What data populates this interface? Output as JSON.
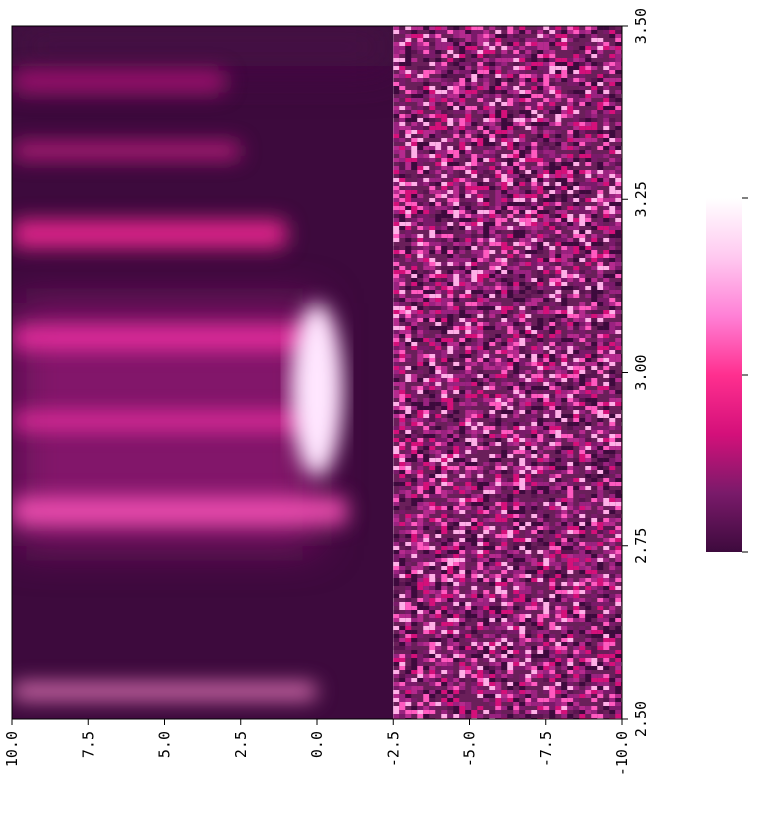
{
  "chart_data": {
    "type": "heatmap",
    "orientation": "rotated-90-clockwise",
    "title": "",
    "xlabel": "",
    "ylabel": "",
    "x_axis": {
      "ticks": [
        10.0,
        7.5,
        5.0,
        2.5,
        0.0,
        -2.5,
        -5.0,
        -7.5,
        -10.0
      ],
      "tick_labels": [
        "10.0",
        "7.5",
        "5.0",
        "2.5",
        "0.0",
        "-2.5",
        "-5.0",
        "-7.5",
        "-10.0"
      ],
      "range": [
        10.0,
        -10.0
      ],
      "position": "bottom"
    },
    "y_axis": {
      "ticks": [
        2.5,
        2.75,
        3.0,
        3.25,
        3.5
      ],
      "tick_labels": [
        "2.50",
        "2.75",
        "3.00",
        "3.25",
        "3.50"
      ],
      "range": [
        2.5,
        3.5
      ],
      "position": "right"
    },
    "split_at_x": -2.5,
    "regions": {
      "smooth": {
        "x_range": [
          10.0,
          -2.5
        ],
        "base_color": "#3d0a3d"
      },
      "noisy": {
        "x_range": [
          -2.5,
          -10.0
        ],
        "base_color": "#6a1f5a"
      }
    },
    "features": [
      {
        "kind": "bright-core",
        "x": 0.0,
        "y_range": [
          2.85,
          3.1
        ],
        "color": "#ffe6ff"
      },
      {
        "kind": "band",
        "y": 2.93,
        "x_range": [
          10.0,
          0.0
        ],
        "color": "#ff33aa"
      },
      {
        "kind": "band",
        "y": 3.05,
        "x_range": [
          10.0,
          0.0
        ],
        "color": "#ff33aa"
      },
      {
        "kind": "band",
        "y": 3.2,
        "x_range": [
          10.0,
          1.0
        ],
        "color": "#ff2b9a"
      },
      {
        "kind": "band",
        "y": 3.32,
        "x_range": [
          10.0,
          2.5
        ],
        "color": "#d51f8a"
      },
      {
        "kind": "band",
        "y": 3.42,
        "x_range": [
          10.0,
          3.0
        ],
        "color": "#b01a78"
      },
      {
        "kind": "band",
        "y": 2.8,
        "x_range": [
          10.0,
          -1.0
        ],
        "color": "#ff55bb"
      },
      {
        "kind": "band",
        "y": 2.54,
        "x_range": [
          10.0,
          0.0
        ],
        "color": "#ff88cc"
      }
    ],
    "colorbar": {
      "colors": [
        "#3d0a3d",
        "#7a1a6a",
        "#d4107a",
        "#ff2f8f",
        "#ff80d6",
        "#ffc9f0",
        "#ffffff"
      ],
      "tick_labels": [
        "",
        "",
        ""
      ],
      "position": "right"
    },
    "grid": false,
    "legend": "none"
  }
}
